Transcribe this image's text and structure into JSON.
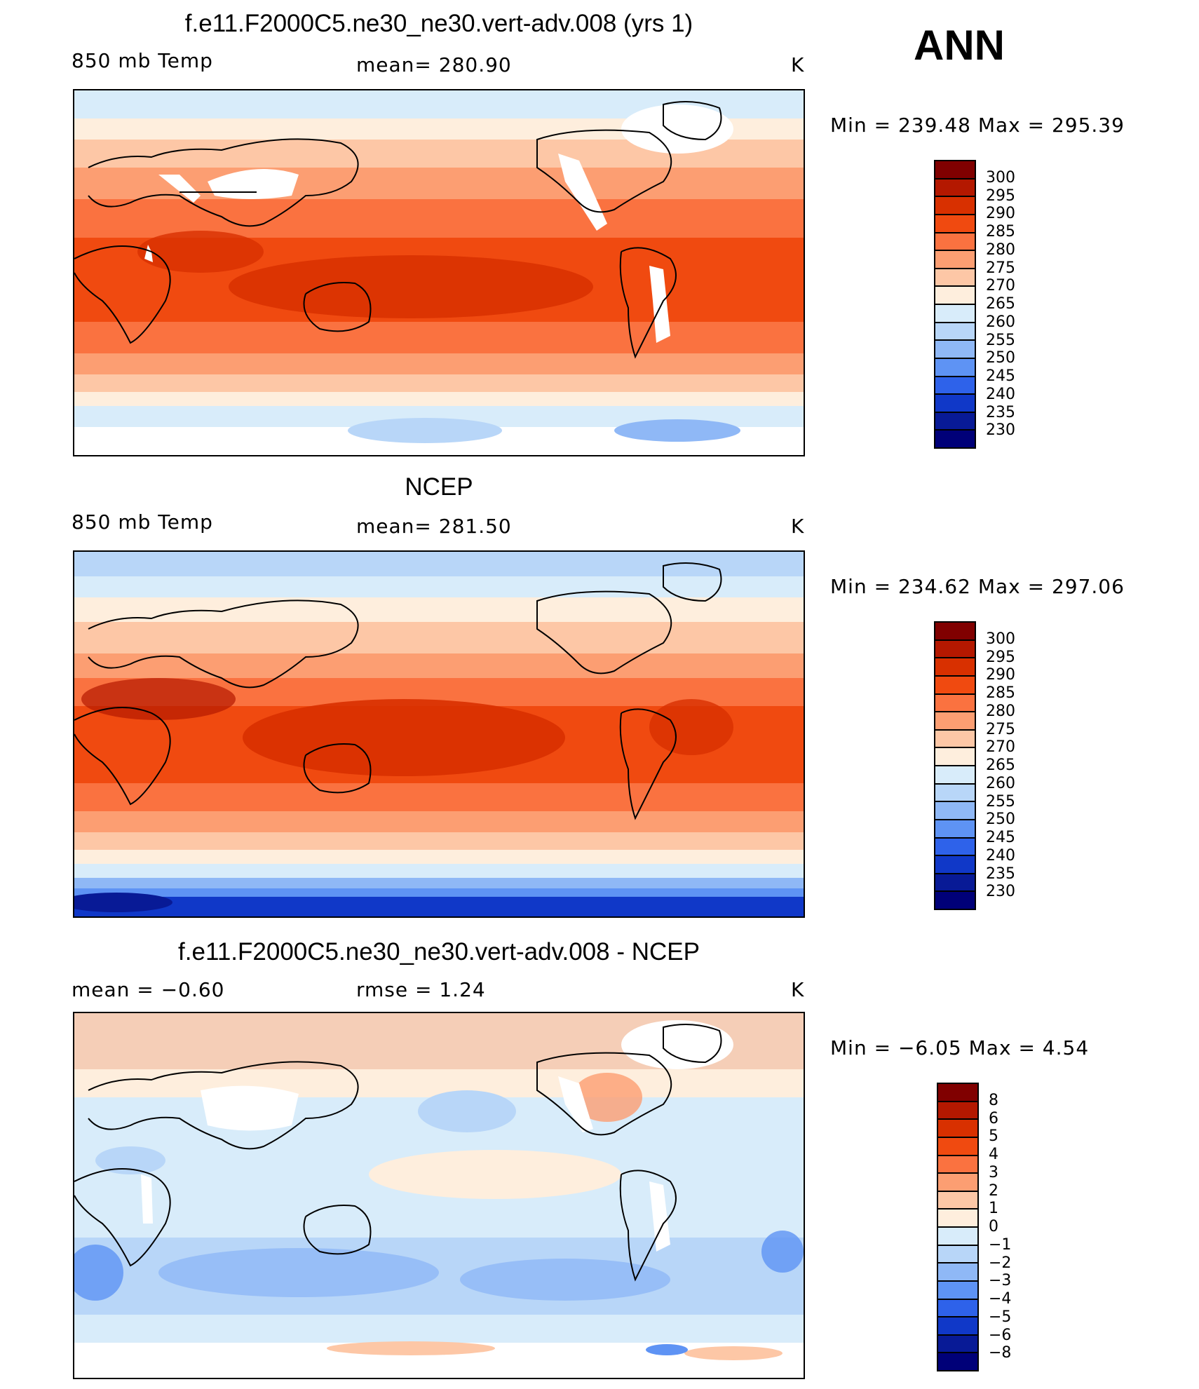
{
  "season": "ANN",
  "panel1": {
    "title": "f.e11.F2000C5.ne30_ne30.vert-adv.008 (yrs 1)",
    "left_label": "850 mb Temp",
    "center_label": "mean=  280.90",
    "units": "K",
    "minmax": "Min  =  239.48  Max  =  295.39"
  },
  "panel2": {
    "title": "NCEP",
    "left_label": "850 mb Temp",
    "center_label": "mean=  281.50",
    "units": "K",
    "minmax": "Min  =  234.62  Max  =  297.06"
  },
  "panel3": {
    "title": "f.e11.F2000C5.ne30_ne30.vert-adv.008 - NCEP",
    "left_label": "mean  =    −0.60",
    "center_label": "rmse  =     1.24",
    "units": "K",
    "minmax": "Min  =   −6.05  Max  =     4.54"
  },
  "colorbar_temp": {
    "labels": [
      "300",
      "295",
      "290",
      "285",
      "280",
      "275",
      "270",
      "265",
      "260",
      "255",
      "250",
      "245",
      "240",
      "235",
      "230"
    ],
    "colors": [
      "#800000",
      "#b41800",
      "#d83000",
      "#f04a10",
      "#fa7240",
      "#fc9e72",
      "#fdc7a6",
      "#feeedd",
      "#d8ecfa",
      "#b8d6f8",
      "#8fb8f6",
      "#5e93f4",
      "#2e62ea",
      "#1038c8",
      "#081a96",
      "#000078"
    ]
  },
  "colorbar_diff": {
    "labels": [
      "8",
      "6",
      "5",
      "4",
      "3",
      "2",
      "1",
      "0",
      "−1",
      "−2",
      "−3",
      "−4",
      "−5",
      "−6",
      "−8"
    ],
    "colors": [
      "#800000",
      "#b41800",
      "#d83000",
      "#f04a10",
      "#fa7240",
      "#fc9e72",
      "#fdc7a6",
      "#feeedd",
      "#d8ecfa",
      "#b8d6f8",
      "#8fb8f6",
      "#5e93f4",
      "#2e62ea",
      "#1038c8",
      "#081a96",
      "#000078"
    ]
  }
}
